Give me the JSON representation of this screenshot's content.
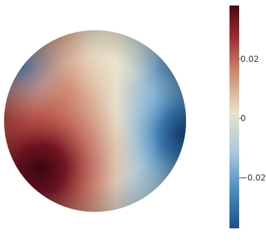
{
  "chart_data": {
    "type": "heatmap",
    "title": "",
    "colorbar": {
      "range": [
        -0.037,
        0.038
      ],
      "ticks": [
        {
          "value": 0.02,
          "label": "0.02"
        },
        {
          "value": 0,
          "label": "0"
        },
        {
          "value": -0.02,
          "label": "−0.02"
        }
      ],
      "colors": [
        "#1b4f8c",
        "#6fa6cf",
        "#e7e3cf",
        "#d59a7f",
        "#4a0a15"
      ]
    },
    "field": {
      "max_region": "bottom-left",
      "max_value": 0.038,
      "min_region": "right",
      "min_value": -0.035
    }
  }
}
